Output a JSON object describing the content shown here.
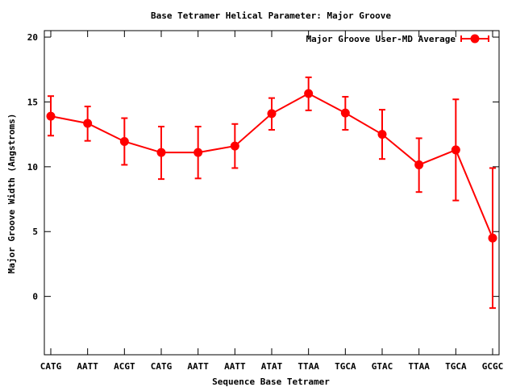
{
  "chart_data": {
    "type": "line",
    "title": "Base Tetramer Helical Parameter: Major Groove",
    "xlabel": "Sequence Base Tetramer",
    "ylabel": "Major Groove Width (Angstroms)",
    "categories": [
      "CATG",
      "AATT",
      "ACGT",
      "CATG",
      "AATT",
      "AATT",
      "ATAT",
      "TTAA",
      "TGCA",
      "GTAC",
      "TTAA",
      "TGCA",
      "GCGC"
    ],
    "yticks": [
      0,
      5,
      10,
      15,
      20
    ],
    "ylim": [
      -4.5,
      20.5
    ],
    "grid": false,
    "legend_position": "top-right",
    "series": [
      {
        "name": "Major Groove User-MD Average",
        "color": "#ff0000",
        "values": [
          13.9,
          13.35,
          11.95,
          11.1,
          11.1,
          11.6,
          14.1,
          15.65,
          14.15,
          12.5,
          10.15,
          11.3,
          4.5
        ],
        "err_low": [
          12.4,
          12.0,
          10.15,
          9.05,
          9.1,
          9.9,
          12.85,
          14.35,
          12.85,
          10.6,
          8.05,
          7.4,
          -0.9
        ],
        "err_high": [
          15.45,
          14.65,
          13.75,
          13.1,
          13.1,
          13.3,
          15.3,
          16.9,
          15.4,
          14.4,
          12.2,
          15.2,
          9.9
        ]
      }
    ]
  }
}
